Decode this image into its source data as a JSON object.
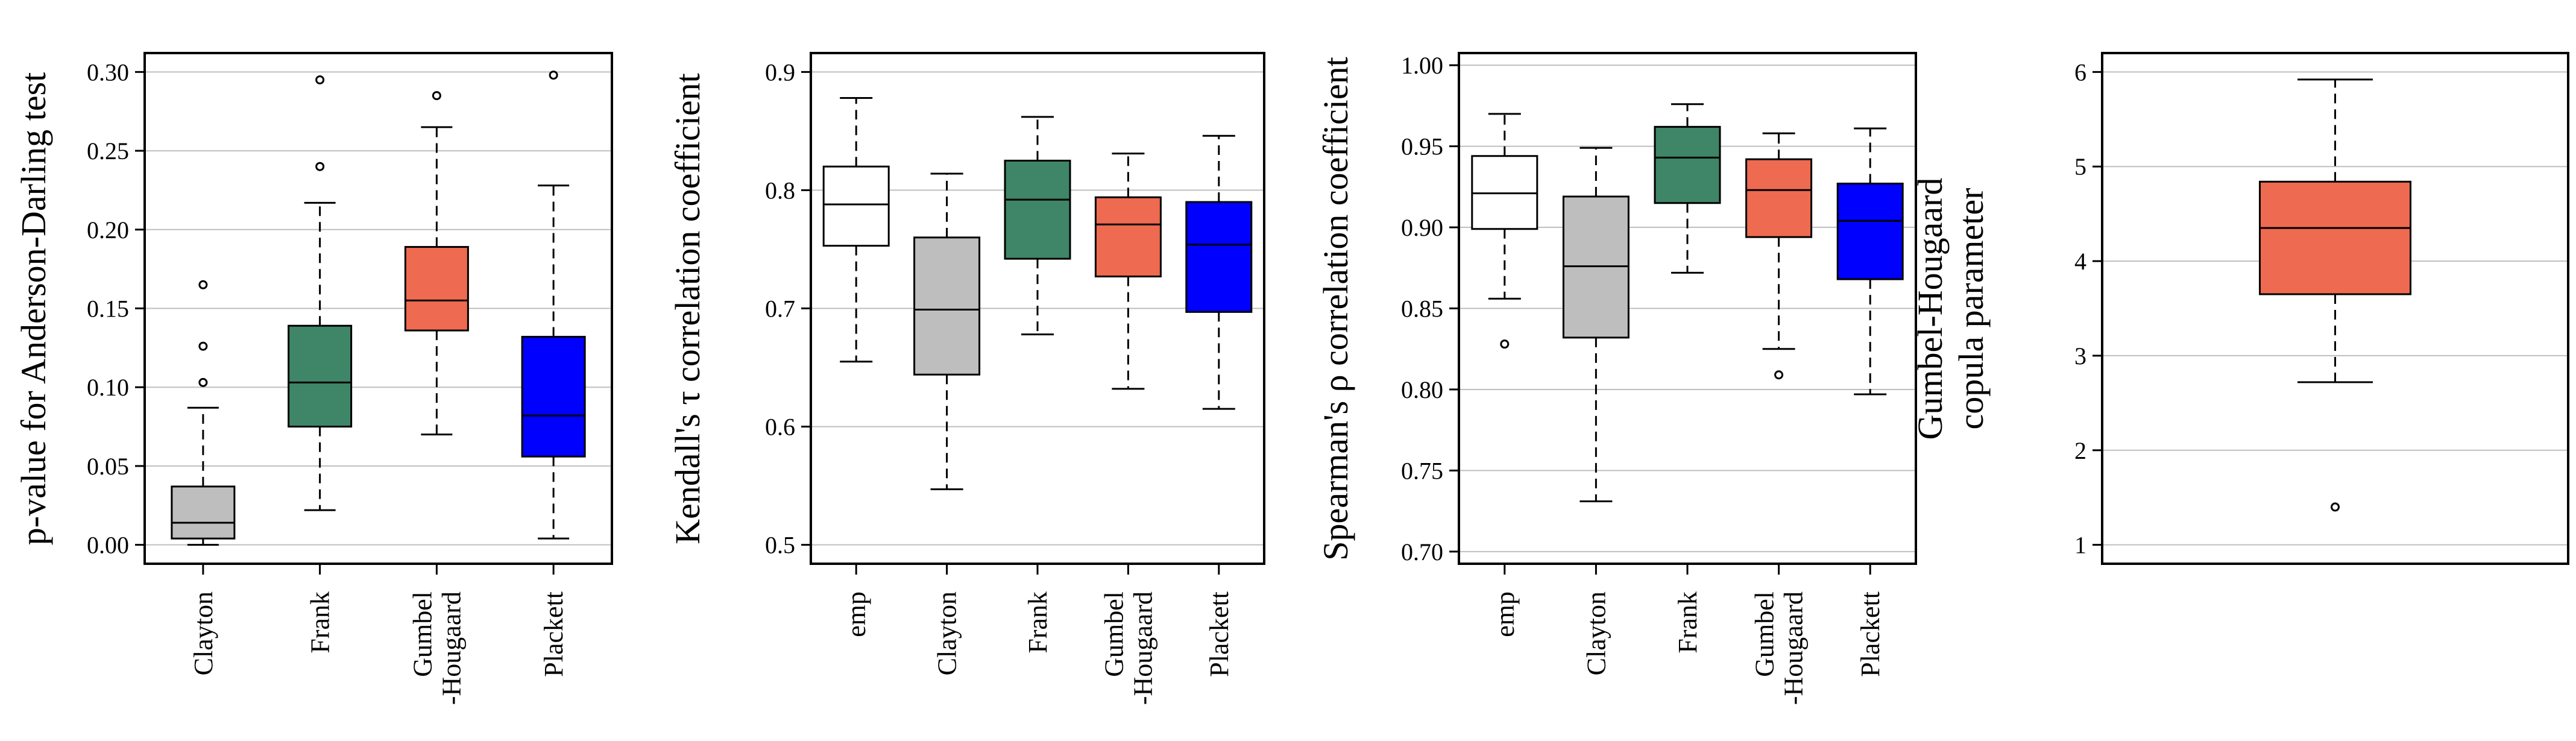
{
  "colors": {
    "white": "#ffffff",
    "gray": "#bebebe",
    "green": "#3f8567",
    "salmon": "#ee6a50",
    "blue": "#0000ff",
    "grid": "#bfbfbf",
    "line": "#000000"
  },
  "chart_data": [
    {
      "type": "boxplot",
      "ylabel": "p-value for Anderson-Darling test",
      "ylim": [
        -0.012,
        0.312
      ],
      "yticks": [
        0.0,
        0.05,
        0.1,
        0.15,
        0.2,
        0.25,
        0.3
      ],
      "ytick_labels": [
        "0.00",
        "0.05",
        "0.10",
        "0.15",
        "0.20",
        "0.25",
        "0.30"
      ],
      "grid": true,
      "boxes": [
        {
          "label": "Clayton",
          "label_lines": [
            "Clayton"
          ],
          "color": "gray",
          "whisker_low": 0.0,
          "q1": 0.004,
          "median": 0.014,
          "q3": 0.037,
          "whisker_high": 0.087,
          "outliers": [
            0.103,
            0.126,
            0.165
          ]
        },
        {
          "label": "Frank",
          "label_lines": [
            "Frank"
          ],
          "color": "green",
          "whisker_low": 0.022,
          "q1": 0.075,
          "median": 0.103,
          "q3": 0.139,
          "whisker_high": 0.217,
          "outliers": [
            0.24,
            0.295
          ]
        },
        {
          "label": "Gumbel-Hougaard",
          "label_lines": [
            "Gumbel",
            "-Hougaard"
          ],
          "color": "salmon",
          "whisker_low": 0.07,
          "q1": 0.136,
          "median": 0.155,
          "q3": 0.189,
          "whisker_high": 0.265,
          "outliers": [
            0.285
          ]
        },
        {
          "label": "Plackett",
          "label_lines": [
            "Plackett"
          ],
          "color": "blue",
          "whisker_low": 0.004,
          "q1": 0.056,
          "median": 0.082,
          "q3": 0.132,
          "whisker_high": 0.228,
          "outliers": [
            0.298
          ]
        }
      ]
    },
    {
      "type": "boxplot",
      "ylabel": "Kendall's τ correlation coefficient",
      "ylim": [
        0.484,
        0.916
      ],
      "yticks": [
        0.5,
        0.6,
        0.7,
        0.8,
        0.9
      ],
      "ytick_labels": [
        "0.5",
        "0.6",
        "0.7",
        "0.8",
        "0.9"
      ],
      "grid": true,
      "boxes": [
        {
          "label": "emp",
          "label_lines": [
            "emp"
          ],
          "color": "white",
          "whisker_low": 0.655,
          "q1": 0.753,
          "median": 0.788,
          "q3": 0.82,
          "whisker_high": 0.878,
          "outliers": []
        },
        {
          "label": "Clayton",
          "label_lines": [
            "Clayton"
          ],
          "color": "gray",
          "whisker_low": 0.547,
          "q1": 0.644,
          "median": 0.699,
          "q3": 0.76,
          "whisker_high": 0.814,
          "outliers": []
        },
        {
          "label": "Frank",
          "label_lines": [
            "Frank"
          ],
          "color": "green",
          "whisker_low": 0.678,
          "q1": 0.742,
          "median": 0.792,
          "q3": 0.825,
          "whisker_high": 0.862,
          "outliers": []
        },
        {
          "label": "Gumbel-Hougaard",
          "label_lines": [
            "Gumbel",
            "-Hougaard"
          ],
          "color": "salmon",
          "whisker_low": 0.632,
          "q1": 0.727,
          "median": 0.771,
          "q3": 0.794,
          "whisker_high": 0.831,
          "outliers": []
        },
        {
          "label": "Plackett",
          "label_lines": [
            "Plackett"
          ],
          "color": "blue",
          "whisker_low": 0.615,
          "q1": 0.697,
          "median": 0.754,
          "q3": 0.79,
          "whisker_high": 0.846,
          "outliers": []
        }
      ]
    },
    {
      "type": "boxplot",
      "ylabel": "Spearman's ρ correlation coefficient",
      "ylim": [
        0.6925,
        1.0075
      ],
      "yticks": [
        0.7,
        0.75,
        0.8,
        0.85,
        0.9,
        0.95,
        1.0
      ],
      "ytick_labels": [
        "0.70",
        "0.75",
        "0.80",
        "0.85",
        "0.90",
        "0.95",
        "1.00"
      ],
      "grid": true,
      "boxes": [
        {
          "label": "emp",
          "label_lines": [
            "emp"
          ],
          "color": "white",
          "whisker_low": 0.856,
          "q1": 0.899,
          "median": 0.921,
          "q3": 0.944,
          "whisker_high": 0.97,
          "outliers": [
            0.828
          ]
        },
        {
          "label": "Clayton",
          "label_lines": [
            "Clayton"
          ],
          "color": "gray",
          "whisker_low": 0.731,
          "q1": 0.832,
          "median": 0.876,
          "q3": 0.919,
          "whisker_high": 0.949,
          "outliers": []
        },
        {
          "label": "Frank",
          "label_lines": [
            "Frank"
          ],
          "color": "green",
          "whisker_low": 0.872,
          "q1": 0.915,
          "median": 0.943,
          "q3": 0.962,
          "whisker_high": 0.976,
          "outliers": []
        },
        {
          "label": "Gumbel-Hougaard",
          "label_lines": [
            "Gumbel",
            "-Hougaard"
          ],
          "color": "salmon",
          "whisker_low": 0.825,
          "q1": 0.894,
          "median": 0.923,
          "q3": 0.942,
          "whisker_high": 0.958,
          "outliers": [
            0.809
          ]
        },
        {
          "label": "Plackett",
          "label_lines": [
            "Plackett"
          ],
          "color": "blue",
          "whisker_low": 0.797,
          "q1": 0.868,
          "median": 0.904,
          "q3": 0.927,
          "whisker_high": 0.961,
          "outliers": []
        }
      ]
    },
    {
      "type": "boxplot",
      "ylabel_lines": [
        "Gumbel-Hougaard",
        "copula parameter"
      ],
      "ylim": [
        0.8,
        6.2
      ],
      "yticks": [
        1,
        2,
        3,
        4,
        5,
        6
      ],
      "ytick_labels": [
        "1",
        "2",
        "3",
        "4",
        "5",
        "6"
      ],
      "grid": true,
      "boxes": [
        {
          "label": "",
          "label_lines": [],
          "color": "salmon",
          "whisker_low": 2.72,
          "q1": 3.65,
          "median": 4.35,
          "q3": 4.84,
          "whisker_high": 5.92,
          "outliers": [
            1.4
          ]
        }
      ]
    }
  ]
}
